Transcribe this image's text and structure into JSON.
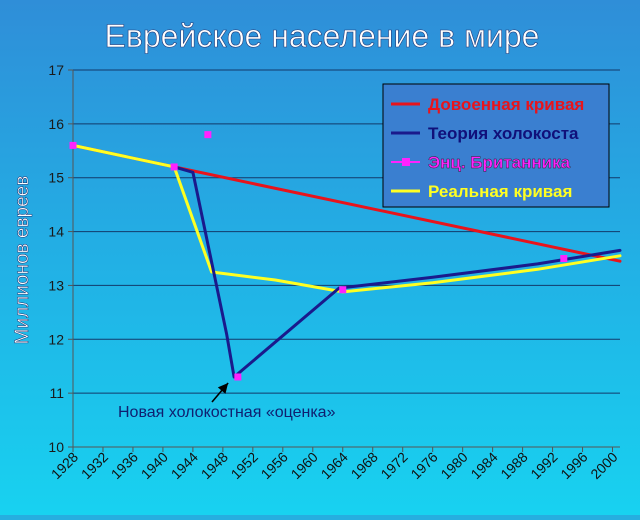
{
  "chart_data": {
    "type": "line",
    "title": "Еврейское население в мире",
    "ylabel": "Миллионов евреев",
    "xlabel": "",
    "xlim": [
      1928,
      2001
    ],
    "ylim": [
      10,
      17
    ],
    "grid": "horizontal",
    "legend_position": "top-right",
    "x_ticks": [
      1928,
      1932,
      1936,
      1940,
      1944,
      1948,
      1952,
      1956,
      1960,
      1964,
      1968,
      1972,
      1976,
      1980,
      1984,
      1988,
      1992,
      1996,
      2000
    ],
    "y_ticks": [
      10,
      11,
      12,
      13,
      14,
      15,
      16,
      17
    ],
    "series": [
      {
        "name": "Довоенная кривая",
        "color": "#e8141c",
        "kind": "line",
        "points": [
          [
            1928,
            15.6
          ],
          [
            1941.5,
            15.2
          ],
          [
            2001,
            13.45
          ]
        ]
      },
      {
        "name": "Теория холокоста",
        "color": "#1a1a8c",
        "kind": "line",
        "points": [
          [
            1941.5,
            15.2
          ],
          [
            1944,
            15.1
          ],
          [
            1948.5,
            12.1
          ],
          [
            1949.5,
            11.3
          ],
          [
            1963.5,
            12.95
          ],
          [
            1976,
            13.15
          ],
          [
            1990,
            13.4
          ],
          [
            2001,
            13.65
          ]
        ]
      },
      {
        "name": "Энц. Британника",
        "color": "#ff22ff",
        "kind": "markers",
        "points": [
          [
            1928,
            15.6
          ],
          [
            1941.5,
            15.2
          ],
          [
            1946,
            15.8
          ],
          [
            1950,
            11.3
          ],
          [
            1964,
            12.92
          ],
          [
            1993.5,
            13.5
          ]
        ]
      },
      {
        "name": "Реальная кривая",
        "color": "#ffff22",
        "kind": "line",
        "points": [
          [
            1928,
            15.6
          ],
          [
            1941.5,
            15.2
          ],
          [
            1946.5,
            13.25
          ],
          [
            1955,
            13.1
          ],
          [
            1964,
            12.88
          ],
          [
            1976,
            13.05
          ],
          [
            1990,
            13.3
          ],
          [
            2001,
            13.55
          ]
        ]
      }
    ],
    "annotation": {
      "text": "Новая холокостная «оценка»",
      "x": 1949.5,
      "y": 11.3
    }
  }
}
